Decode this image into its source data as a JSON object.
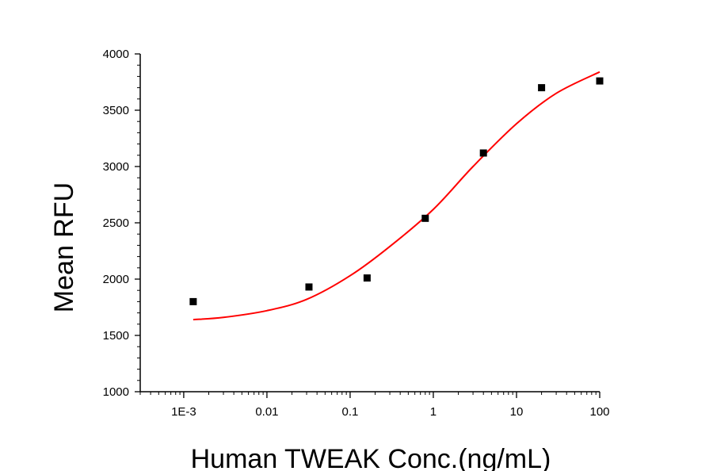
{
  "chart_data": {
    "type": "scatter",
    "xlabel": "Human TWEAK Conc.(ng/mL)",
    "ylabel": "Mean RFU",
    "x_scale": "log",
    "xlim": [
      0.0003,
      100
    ],
    "ylim": [
      1000,
      4000
    ],
    "x_ticks": [
      {
        "value": 0.001,
        "label": "1E-3"
      },
      {
        "value": 0.01,
        "label": "0.01"
      },
      {
        "value": 0.1,
        "label": "0.1"
      },
      {
        "value": 1,
        "label": "1"
      },
      {
        "value": 10,
        "label": "10"
      },
      {
        "value": 100,
        "label": "100"
      }
    ],
    "y_ticks": [
      {
        "value": 1000,
        "label": "1000"
      },
      {
        "value": 1500,
        "label": "1500"
      },
      {
        "value": 2000,
        "label": "2000"
      },
      {
        "value": 2500,
        "label": "2500"
      },
      {
        "value": 3000,
        "label": "3000"
      },
      {
        "value": 3500,
        "label": "3500"
      },
      {
        "value": 4000,
        "label": "4000"
      }
    ],
    "grid": false,
    "series": [
      {
        "kind": "points",
        "marker": "square",
        "color": "#000000",
        "points": [
          {
            "x": 0.0013,
            "y": 1800
          },
          {
            "x": 0.032,
            "y": 1930
          },
          {
            "x": 0.16,
            "y": 2010
          },
          {
            "x": 0.8,
            "y": 2540
          },
          {
            "x": 4.0,
            "y": 3120
          },
          {
            "x": 20,
            "y": 3700
          },
          {
            "x": 100,
            "y": 3760
          }
        ]
      },
      {
        "kind": "fit",
        "color": "#ff0000",
        "curve": [
          {
            "x": 0.0013,
            "y": 1640
          },
          {
            "x": 0.003,
            "y": 1660
          },
          {
            "x": 0.01,
            "y": 1720
          },
          {
            "x": 0.03,
            "y": 1820
          },
          {
            "x": 0.1,
            "y": 2030
          },
          {
            "x": 0.3,
            "y": 2290
          },
          {
            "x": 1,
            "y": 2620
          },
          {
            "x": 3,
            "y": 3000
          },
          {
            "x": 10,
            "y": 3380
          },
          {
            "x": 30,
            "y": 3650
          },
          {
            "x": 100,
            "y": 3840
          }
        ]
      }
    ]
  }
}
